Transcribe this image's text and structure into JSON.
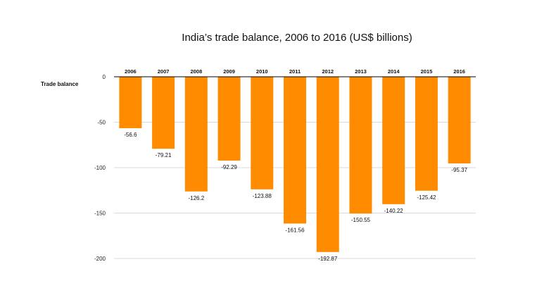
{
  "chart_data": {
    "type": "bar",
    "title": "India’s trade balance, 2006 to 2016 (US$ billions)",
    "ylabel": "Trade balance",
    "xlabel": "",
    "categories": [
      "2006",
      "2007",
      "2008",
      "2009",
      "2010",
      "2011",
      "2012",
      "2013",
      "2014",
      "2015",
      "2016"
    ],
    "values": [
      -56.6,
      -79.21,
      -126.2,
      -92.29,
      -123.88,
      -161.56,
      -192.87,
      -150.55,
      -140.22,
      -125.42,
      -95.37
    ],
    "value_labels": [
      "-56.6",
      "-79.21",
      "-126.2",
      "-92.29",
      "-123.88",
      "-161.56",
      "-192.87",
      "-150.55",
      "-140.22",
      "-125.42",
      "-95.37"
    ],
    "yticks": [
      0,
      -50,
      -100,
      -150,
      -200
    ],
    "ytick_labels": [
      "0",
      "-50",
      "-100",
      "-150",
      "-200"
    ],
    "ylim": [
      -200,
      0
    ],
    "grid": true,
    "category_axis_position": "top",
    "bar_color": "#FF8C00",
    "grid_color": "#CCCCCC",
    "axis_color": "#000000"
  }
}
